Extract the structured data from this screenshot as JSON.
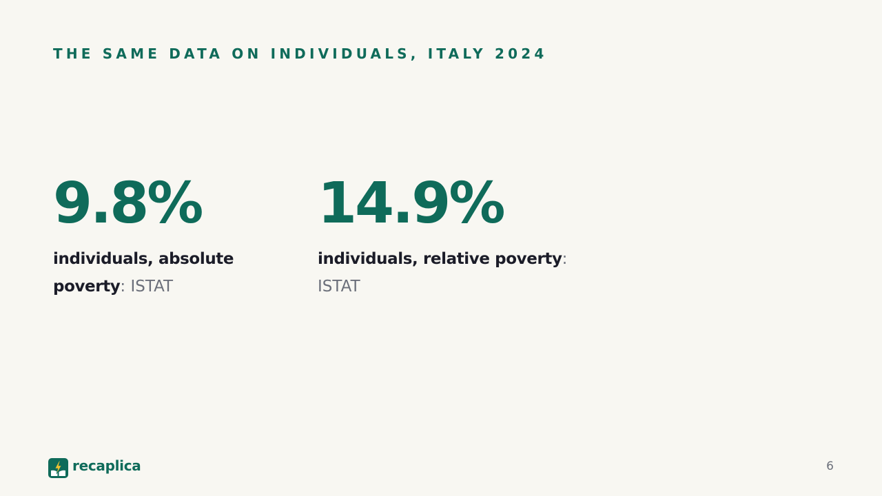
{
  "slide": {
    "kicker": "THE SAME DATA ON INDIVIDUALS, ITALY 2024",
    "stats": [
      {
        "value": "9.8%",
        "label": "individuals, absolute poverty",
        "separator": ":",
        "source": "ISTAT"
      },
      {
        "value": "14.9%",
        "label": "individuals, relative poverty",
        "separator": ":",
        "source": "ISTAT"
      }
    ]
  },
  "footer": {
    "brand": "recaplica",
    "logo_icon": "lightning-book-icon",
    "page_number": "6"
  },
  "colors": {
    "background": "#f8f7f2",
    "accent": "#0f6b5a",
    "text": "#1b1c28",
    "muted": "#6b6f7a",
    "logo_bolt": "#f2c230"
  }
}
